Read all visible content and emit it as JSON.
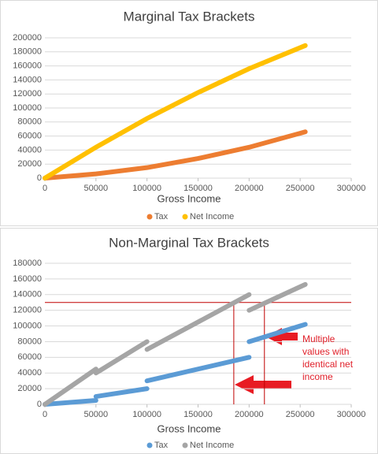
{
  "chart_data": [
    {
      "type": "line",
      "title": "Marginal Tax Brackets",
      "x_label": "Gross Income",
      "x": [
        0,
        50000,
        100000,
        150000,
        200000,
        255000
      ],
      "series": [
        {
          "name": "Tax",
          "color": "#ed7d31",
          "values": [
            0,
            6000,
            15000,
            28000,
            44000,
            66000
          ]
        },
        {
          "name": "Net Income",
          "color": "#ffc000",
          "values": [
            0,
            44000,
            85000,
            122000,
            156000,
            189000
          ]
        }
      ],
      "xlim": [
        0,
        300000
      ],
      "xticks": [
        0,
        50000,
        100000,
        150000,
        200000,
        250000,
        300000
      ],
      "ylim": [
        0,
        200000
      ],
      "yticks": [
        0,
        20000,
        40000,
        60000,
        80000,
        100000,
        120000,
        140000,
        160000,
        180000,
        200000
      ],
      "legend": "bottom"
    },
    {
      "type": "line",
      "title": "Non-Marginal Tax Brackets",
      "x_label": "Gross Income",
      "x": [
        0,
        50000,
        50000,
        50000,
        100000,
        100000,
        100000,
        200000,
        200000,
        200000,
        255000
      ],
      "series": [
        {
          "name": "Tax",
          "color": "#5b9bd5",
          "values": [
            0,
            5000,
            null,
            10000,
            20000,
            null,
            30000,
            60000,
            null,
            80000,
            102000
          ]
        },
        {
          "name": "Net Income",
          "color": "#a5a5a5",
          "values": [
            0,
            45000,
            null,
            40000,
            80000,
            null,
            70000,
            140000,
            null,
            120000,
            153000
          ]
        }
      ],
      "xlim": [
        0,
        300000
      ],
      "xticks": [
        0,
        50000,
        100000,
        150000,
        200000,
        250000,
        300000
      ],
      "ylim": [
        0,
        180000
      ],
      "yticks": [
        0,
        20000,
        40000,
        60000,
        80000,
        100000,
        120000,
        140000,
        160000,
        180000
      ],
      "legend": "bottom",
      "hline": 130000,
      "vlines": [
        185000,
        215000
      ],
      "annotation": [
        "Multiple",
        "values with",
        "identical net",
        "income"
      ]
    }
  ]
}
